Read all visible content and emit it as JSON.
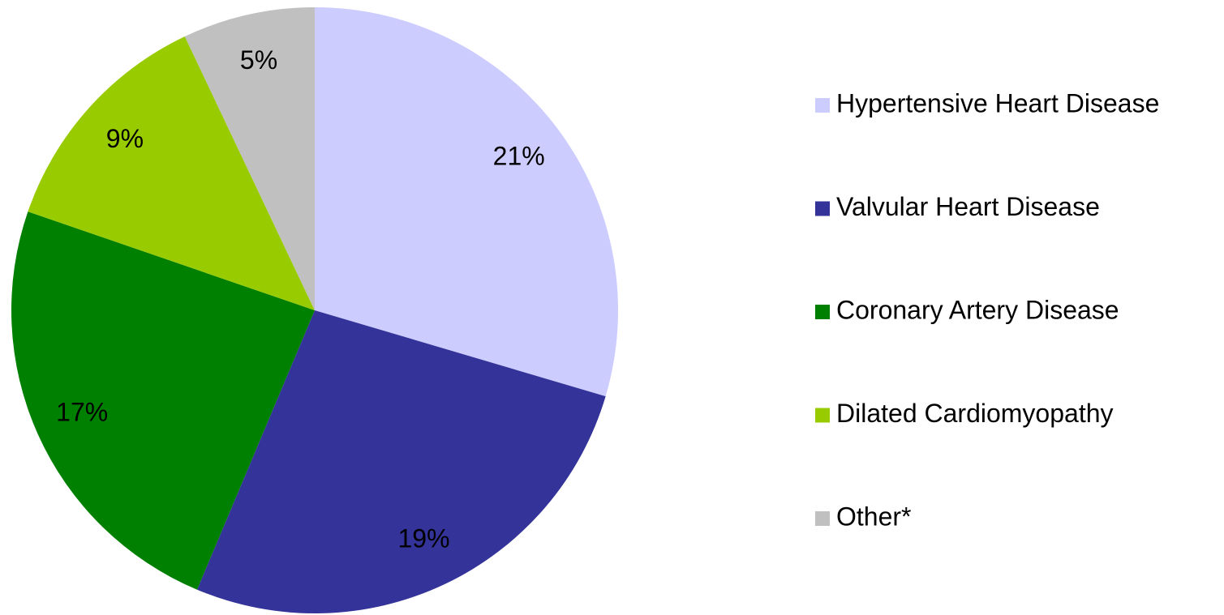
{
  "chart_data": {
    "type": "pie",
    "categories": [
      "Hypertensive Heart Disease",
      "Valvular Heart Disease",
      "Coronary Artery Disease",
      "Dilated Cardiomyopathy",
      "Other*"
    ],
    "values": [
      21,
      19,
      17,
      9,
      5
    ],
    "value_labels": [
      "21%",
      "19%",
      "17%",
      "9%",
      "5%"
    ],
    "colors": [
      "#ccccff",
      "#333399",
      "#008000",
      "#99cc00",
      "#c0c0c0"
    ],
    "legend": "right"
  }
}
